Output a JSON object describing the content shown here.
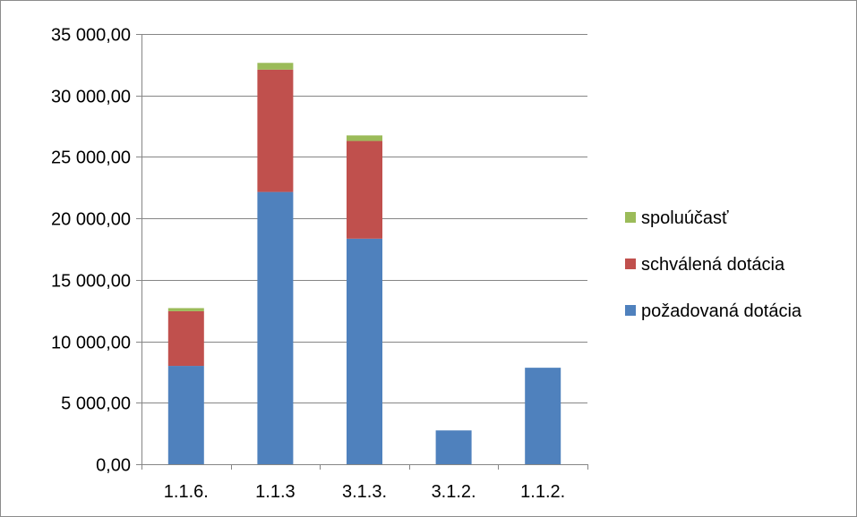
{
  "chart_data": {
    "type": "bar",
    "stacked": true,
    "title": "",
    "xlabel": "",
    "ylabel": "",
    "categories": [
      "1.1.6.",
      "1.1.3",
      "3.1.3.",
      "3.1.2.",
      "1.1.2."
    ],
    "series": [
      {
        "name": "požadovaná dotácia",
        "color": "#4f81bd",
        "values": [
          8000,
          22150,
          18350,
          2750,
          7850
        ]
      },
      {
        "name": "schválená dotácia",
        "color": "#c0504d",
        "values": [
          4450,
          9950,
          7950,
          0,
          0
        ]
      },
      {
        "name": "spoluúčasť",
        "color": "#9bbb59",
        "values": [
          250,
          550,
          450,
          0,
          0
        ]
      }
    ],
    "ylim": [
      0,
      35000
    ],
    "yticks": [
      0,
      5000,
      10000,
      15000,
      20000,
      25000,
      30000,
      35000
    ],
    "ytick_labels": [
      "0,00",
      "5 000,00",
      "10 000,00",
      "15 000,00",
      "20 000,00",
      "25 000,00",
      "30 000,00",
      "35 000,00"
    ],
    "grid": true,
    "legend_position": "right",
    "legend_order": [
      "spoluúčasť",
      "schválená dotácia",
      "požadovaná dotácia"
    ]
  }
}
